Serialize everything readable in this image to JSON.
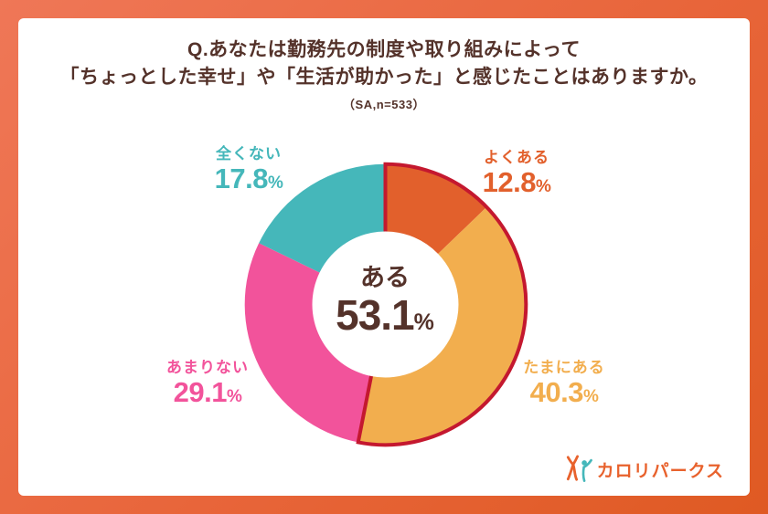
{
  "title": {
    "line1": "Q.あなたは勤務先の制度や取り組みによって",
    "line2": "「ちょっとした幸せ」や「生活が助かった」と感じたことはありますか。",
    "note": "（SA,n=533）"
  },
  "chart_data": {
    "type": "pie",
    "subtype": "donut",
    "title": "Q.あなたは勤務先の制度や取り組みによって「ちょっとした幸せ」や「生活が助かった」と感じたことはありますか。",
    "sample_note": "（SA,n=533）",
    "start_angle_deg": 0,
    "direction": "clockwise",
    "inner_radius_ratio": 0.52,
    "segments": [
      {
        "label": "よくある",
        "value": 12.8,
        "value_text": "12.8",
        "unit": "%",
        "color": "#e2602c"
      },
      {
        "label": "たまにある",
        "value": 40.3,
        "value_text": "40.3",
        "unit": "%",
        "color": "#f2ae4e"
      },
      {
        "label": "あまりない",
        "value": 29.1,
        "value_text": "29.1",
        "unit": "%",
        "color": "#f2539b"
      },
      {
        "label": "全くない",
        "value": 17.8,
        "value_text": "17.8",
        "unit": "%",
        "color": "#45b7ba"
      }
    ],
    "center": {
      "label": "ある",
      "value": 53.1,
      "value_text": "53.1",
      "unit": "%",
      "color": "#54322a"
    },
    "highlight": {
      "segment_indices": [
        0,
        1
      ],
      "stroke_color": "#c4182f"
    }
  },
  "logo": {
    "text": "カロリパークス",
    "color": "#e8622d"
  }
}
